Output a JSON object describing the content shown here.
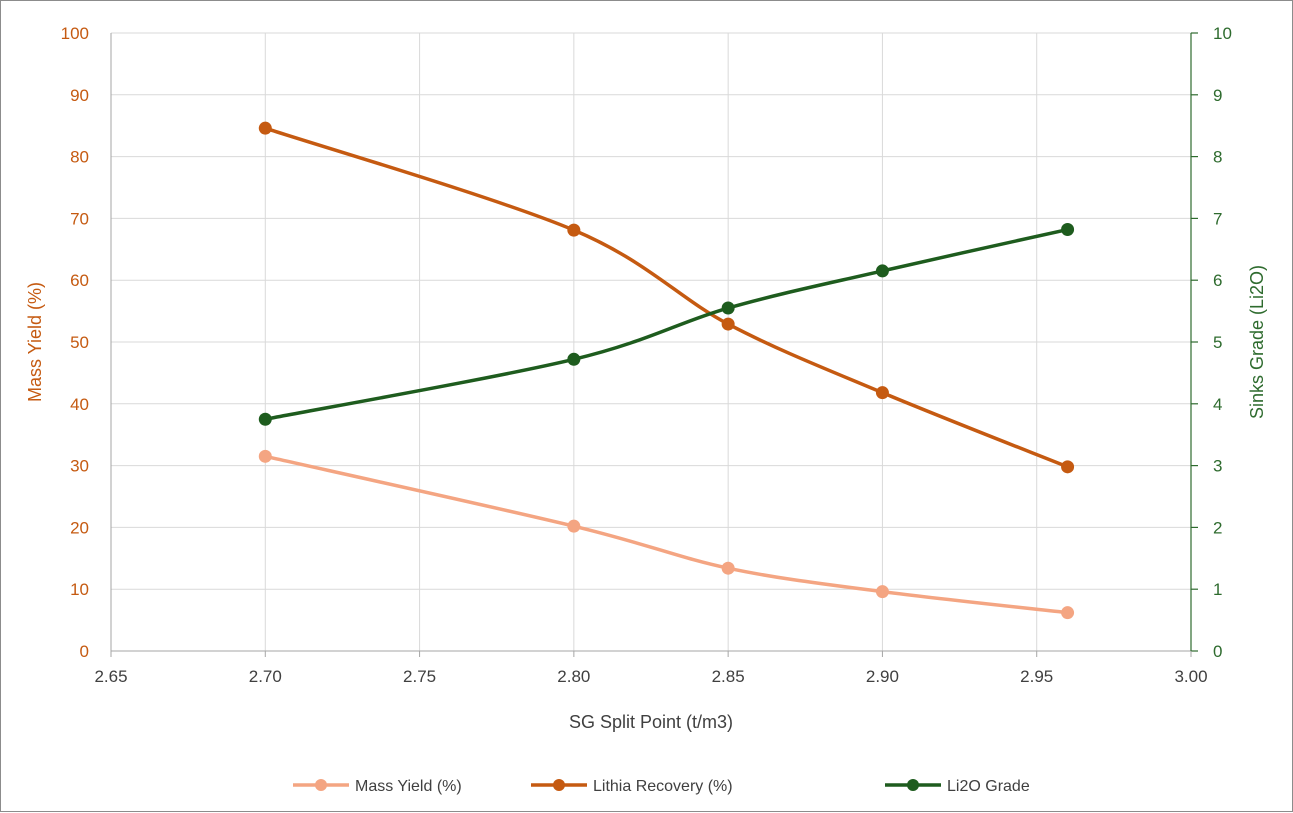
{
  "chart_data": {
    "type": "line",
    "xlabel": "SG Split Point (t/m3)",
    "ylabel": "Mass Yield (%)",
    "y2label": "Sinks Grade (Li2O)",
    "xlim": [
      2.65,
      3.0
    ],
    "ylim": [
      0,
      100
    ],
    "y2lim": [
      0,
      10
    ],
    "x_ticks": [
      "2.65",
      "2.70",
      "2.75",
      "2.80",
      "2.85",
      "2.90",
      "2.95",
      "3.00"
    ],
    "y_ticks": [
      "0",
      "10",
      "20",
      "30",
      "40",
      "50",
      "60",
      "70",
      "80",
      "90",
      "100"
    ],
    "y2_ticks": [
      "0",
      "1",
      "2",
      "3",
      "4",
      "5",
      "6",
      "7",
      "8",
      "9",
      "10"
    ],
    "grid": true,
    "legend_position": "bottom",
    "series": [
      {
        "name": "Mass Yield (%)",
        "axis": "left",
        "color": "#f4a582",
        "x": [
          2.7,
          2.8,
          2.85,
          2.9,
          2.96
        ],
        "values": [
          31.5,
          20.2,
          13.4,
          9.6,
          6.2
        ]
      },
      {
        "name": "Lithia Recovery (%)",
        "axis": "left",
        "color": "#c55a11",
        "x": [
          2.7,
          2.8,
          2.85,
          2.9,
          2.96
        ],
        "values": [
          84.6,
          68.1,
          52.9,
          41.8,
          29.8
        ]
      },
      {
        "name": "Li2O Grade",
        "axis": "right",
        "color": "#1e5c1e",
        "x": [
          2.7,
          2.8,
          2.85,
          2.9,
          2.96
        ],
        "values": [
          3.75,
          4.72,
          5.55,
          6.15,
          6.82
        ]
      }
    ],
    "colors": {
      "left_axis": "#c55a11",
      "right_axis": "#2e6b2e",
      "grid": "#d9d9d9"
    }
  }
}
